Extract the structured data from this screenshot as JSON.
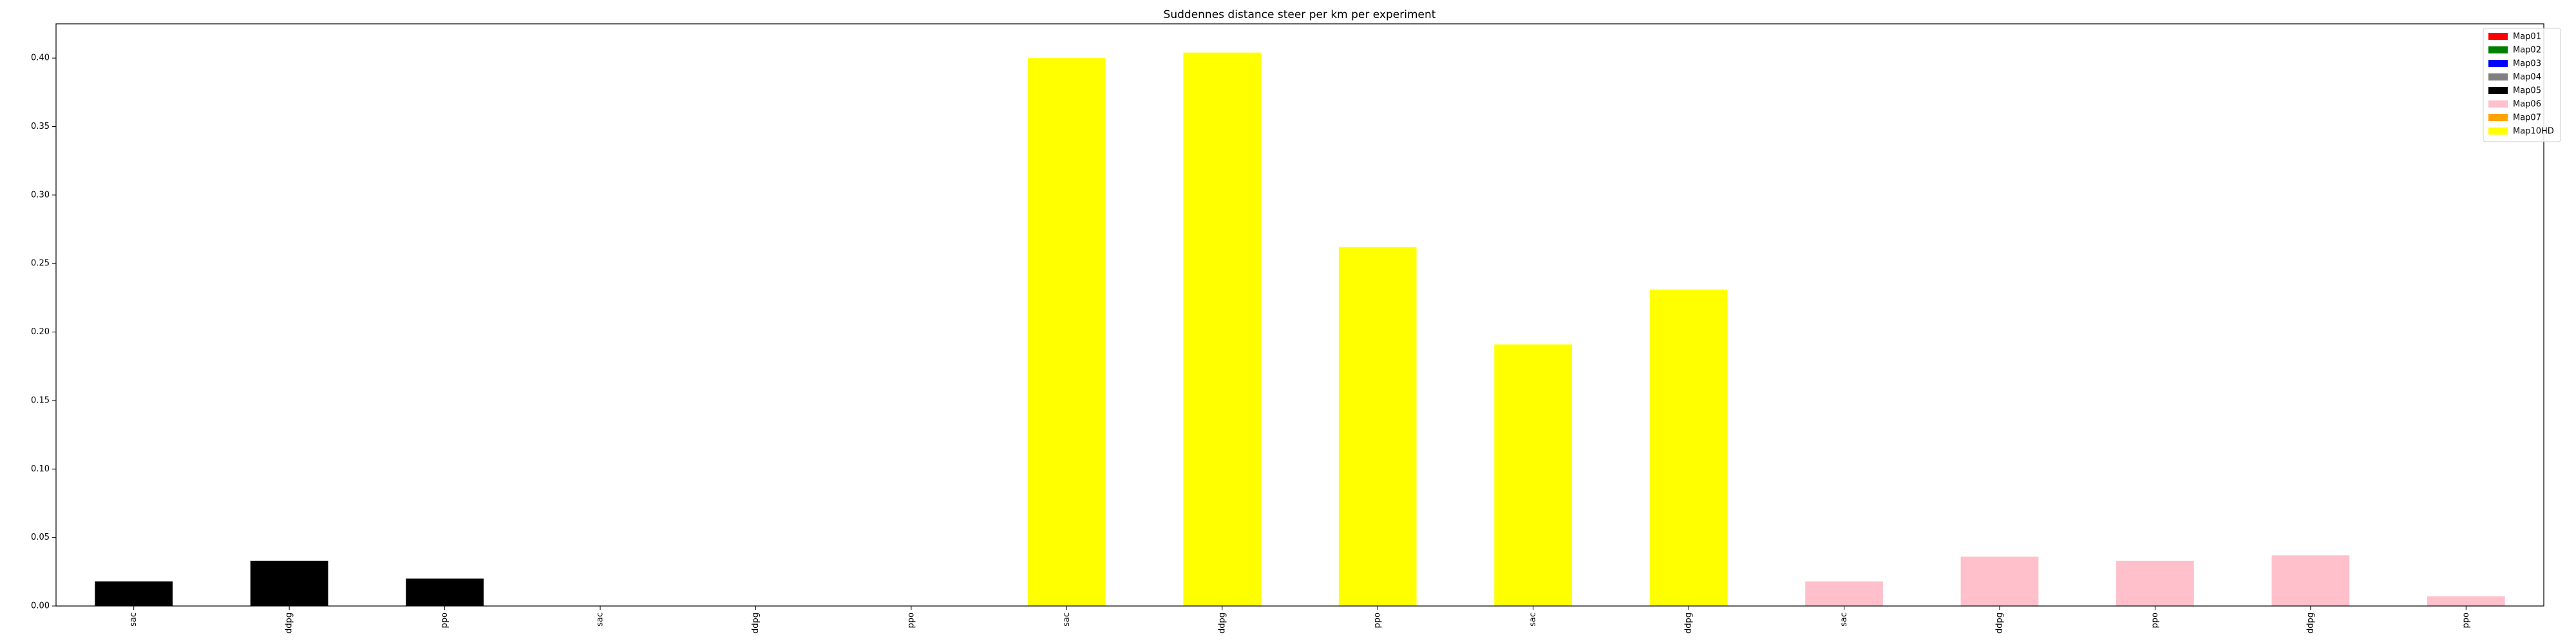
{
  "chart_data": {
    "type": "bar",
    "title": "Suddennes distance steer per km per experiment",
    "xlabel": "",
    "ylabel": "",
    "ylim": [
      0,
      0.425
    ],
    "yticks": [
      0.0,
      0.05,
      0.1,
      0.15,
      0.2,
      0.25,
      0.3,
      0.35,
      0.4
    ],
    "grid": false,
    "legend_position": "top-right",
    "legend": [
      {
        "name": "Map01",
        "color": "#ff0000"
      },
      {
        "name": "Map02",
        "color": "#008000"
      },
      {
        "name": "Map03",
        "color": "#0000ff"
      },
      {
        "name": "Map04",
        "color": "#808080"
      },
      {
        "name": "Map05",
        "color": "#000000"
      },
      {
        "name": "Map06",
        "color": "#ffc0cb"
      },
      {
        "name": "Map07",
        "color": "#ffa500"
      },
      {
        "name": "Map10HD",
        "color": "#ffff00"
      }
    ],
    "categories": [
      "sac",
      "ddpg",
      "ppo",
      "sac",
      "ddpg",
      "ppo",
      "sac",
      "ddpg",
      "ppo",
      "sac",
      "ddpg",
      "sac",
      "ddpg",
      "ppo",
      "ddpg",
      "ppo"
    ],
    "values": [
      0.018,
      0.033,
      0.02,
      0.0,
      0.0,
      0.0,
      0.4,
      0.404,
      0.262,
      0.191,
      0.231,
      0.018,
      0.036,
      0.033,
      0.037,
      0.007
    ],
    "bar_colors": [
      "#000000",
      "#000000",
      "#000000",
      "#000000",
      "#000000",
      "#000000",
      "#ffff00",
      "#ffff00",
      "#ffff00",
      "#ffff00",
      "#ffff00",
      "#ffc0cb",
      "#ffc0cb",
      "#ffc0cb",
      "#ffc0cb",
      "#ffc0cb"
    ]
  }
}
